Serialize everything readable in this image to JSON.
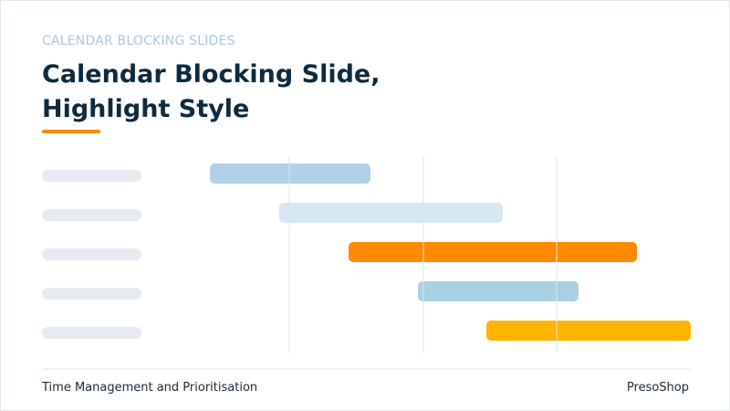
{
  "header": {
    "eyebrow": "CALENDAR BLOCKING SLIDES",
    "title": "Calendar Blocking Slide, Highlight Style"
  },
  "footer": {
    "left": "Time Management and Prioritisation",
    "right": "PresoShop"
  }
}
